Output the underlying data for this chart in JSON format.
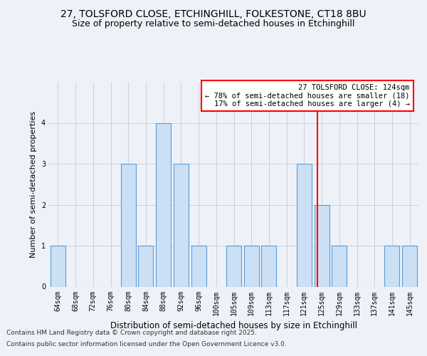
{
  "title1": "27, TOLSFORD CLOSE, ETCHINGHILL, FOLKESTONE, CT18 8BU",
  "title2": "Size of property relative to semi-detached houses in Etchinghill",
  "xlabel": "Distribution of semi-detached houses by size in Etchinghill",
  "ylabel": "Number of semi-detached properties",
  "footer1": "Contains HM Land Registry data © Crown copyright and database right 2025.",
  "footer2": "Contains public sector information licensed under the Open Government Licence v3.0.",
  "categories": [
    "64sqm",
    "68sqm",
    "72sqm",
    "76sqm",
    "80sqm",
    "84sqm",
    "88sqm",
    "92sqm",
    "96sqm",
    "100sqm",
    "105sqm",
    "109sqm",
    "113sqm",
    "117sqm",
    "121sqm",
    "125sqm",
    "129sqm",
    "133sqm",
    "137sqm",
    "141sqm",
    "145sqm"
  ],
  "values": [
    1,
    0,
    0,
    0,
    3,
    1,
    4,
    3,
    1,
    0,
    1,
    1,
    1,
    0,
    3,
    2,
    1,
    0,
    0,
    1,
    1
  ],
  "bar_color": "#cce0f5",
  "bar_edge_color": "#5b9bd5",
  "annotation_line_color": "red",
  "annotation_text": "27 TOLSFORD CLOSE: 124sqm\n← 78% of semi-detached houses are smaller (18)\n17% of semi-detached houses are larger (4) →",
  "annotation_box_color": "white",
  "annotation_box_edge_color": "red",
  "ylim": [
    0,
    5
  ],
  "yticks": [
    0,
    1,
    2,
    3,
    4,
    5
  ],
  "background_color": "#eef2f8",
  "plot_bg_color": "#eef2f8",
  "grid_color": "#c8d0dc",
  "title1_fontsize": 10,
  "title2_fontsize": 9,
  "xlabel_fontsize": 8.5,
  "ylabel_fontsize": 8,
  "tick_fontsize": 7,
  "footer_fontsize": 6.5,
  "annotation_fontsize": 7.5
}
